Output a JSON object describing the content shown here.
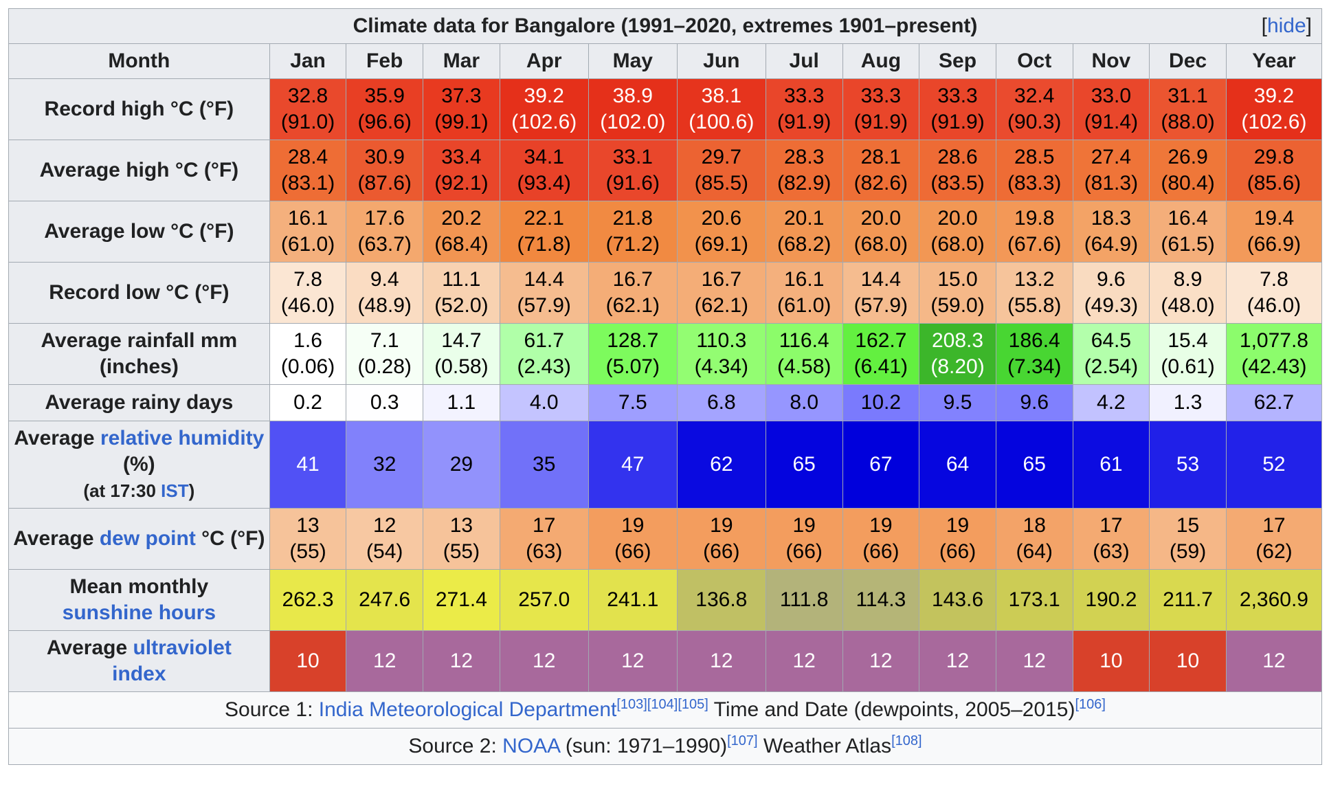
{
  "title": "Climate data for Bangalore (1991–2020, extremes 1901–present)",
  "hide_link": {
    "open": "[",
    "label": "hide",
    "close": "]"
  },
  "header": [
    "Month",
    "Jan",
    "Feb",
    "Mar",
    "Apr",
    "May",
    "Jun",
    "Jul",
    "Aug",
    "Sep",
    "Oct",
    "Nov",
    "Dec",
    "Year"
  ],
  "rows": [
    {
      "kind": "r2",
      "label": [
        {
          "t": "Record high °C (°F)"
        }
      ],
      "cells": [
        {
          "l1": "32.8",
          "l2": "(91.0)",
          "bg": "#e9492c",
          "fg": "#000000"
        },
        {
          "l1": "35.9",
          "l2": "(96.6)",
          "bg": "#e83f24",
          "fg": "#000000"
        },
        {
          "l1": "37.3",
          "l2": "(99.1)",
          "bg": "#e83a20",
          "fg": "#000000"
        },
        {
          "l1": "39.2",
          "l2": "(102.6)",
          "bg": "#e5301a",
          "fg": "#ffffff"
        },
        {
          "l1": "38.9",
          "l2": "(102.0)",
          "bg": "#e5301a",
          "fg": "#ffffff"
        },
        {
          "l1": "38.1",
          "l2": "(100.6)",
          "bg": "#e6341d",
          "fg": "#ffffff"
        },
        {
          "l1": "33.3",
          "l2": "(91.9)",
          "bg": "#e9462a",
          "fg": "#000000"
        },
        {
          "l1": "33.3",
          "l2": "(91.9)",
          "bg": "#e9462a",
          "fg": "#000000"
        },
        {
          "l1": "33.3",
          "l2": "(91.9)",
          "bg": "#e9462a",
          "fg": "#000000"
        },
        {
          "l1": "32.4",
          "l2": "(90.3)",
          "bg": "#ea4b2e",
          "fg": "#000000"
        },
        {
          "l1": "33.0",
          "l2": "(91.4)",
          "bg": "#e9472b",
          "fg": "#000000"
        },
        {
          "l1": "31.1",
          "l2": "(88.0)",
          "bg": "#eb5530",
          "fg": "#000000"
        },
        {
          "l1": "39.2",
          "l2": "(102.6)",
          "bg": "#e5301a",
          "fg": "#ffffff"
        }
      ]
    },
    {
      "kind": "r2",
      "label": [
        {
          "t": "Average high °C (°F)"
        }
      ],
      "cells": [
        {
          "l1": "28.4",
          "l2": "(83.1)",
          "bg": "#ee6d35",
          "fg": "#000000"
        },
        {
          "l1": "30.9",
          "l2": "(87.6)",
          "bg": "#eb5a30",
          "fg": "#000000"
        },
        {
          "l1": "33.4",
          "l2": "(92.1)",
          "bg": "#e9462a",
          "fg": "#000000"
        },
        {
          "l1": "34.1",
          "l2": "(93.4)",
          "bg": "#e84228",
          "fg": "#000000"
        },
        {
          "l1": "33.1",
          "l2": "(91.6)",
          "bg": "#e9472b",
          "fg": "#000000"
        },
        {
          "l1": "29.7",
          "l2": "(85.5)",
          "bg": "#ec6332",
          "fg": "#000000"
        },
        {
          "l1": "28.3",
          "l2": "(82.9)",
          "bg": "#ee6d35",
          "fg": "#000000"
        },
        {
          "l1": "28.1",
          "l2": "(82.6)",
          "bg": "#ee6f36",
          "fg": "#000000"
        },
        {
          "l1": "28.6",
          "l2": "(83.5)",
          "bg": "#ee6b35",
          "fg": "#000000"
        },
        {
          "l1": "28.5",
          "l2": "(83.3)",
          "bg": "#ee6c35",
          "fg": "#000000"
        },
        {
          "l1": "27.4",
          "l2": "(81.3)",
          "bg": "#ef7438",
          "fg": "#000000"
        },
        {
          "l1": "26.9",
          "l2": "(80.4)",
          "bg": "#ef7739",
          "fg": "#000000"
        },
        {
          "l1": "29.8",
          "l2": "(85.6)",
          "bg": "#ec6232",
          "fg": "#000000"
        }
      ]
    },
    {
      "kind": "r2",
      "label": [
        {
          "t": "Average low °C (°F)"
        }
      ],
      "cells": [
        {
          "l1": "16.1",
          "l2": "(61.0)",
          "bg": "#f4b07d",
          "fg": "#000000"
        },
        {
          "l1": "17.6",
          "l2": "(63.7)",
          "bg": "#f4a86e",
          "fg": "#000000"
        },
        {
          "l1": "20.2",
          "l2": "(68.4)",
          "bg": "#f29552",
          "fg": "#000000"
        },
        {
          "l1": "22.1",
          "l2": "(71.8)",
          "bg": "#f1883f",
          "fg": "#000000"
        },
        {
          "l1": "21.8",
          "l2": "(71.2)",
          "bg": "#f18a42",
          "fg": "#000000"
        },
        {
          "l1": "20.6",
          "l2": "(69.1)",
          "bg": "#f2924c",
          "fg": "#000000"
        },
        {
          "l1": "20.1",
          "l2": "(68.2)",
          "bg": "#f29653",
          "fg": "#000000"
        },
        {
          "l1": "20.0",
          "l2": "(68.0)",
          "bg": "#f29754",
          "fg": "#000000"
        },
        {
          "l1": "20.0",
          "l2": "(68.0)",
          "bg": "#f29754",
          "fg": "#000000"
        },
        {
          "l1": "19.8",
          "l2": "(67.6)",
          "bg": "#f39857",
          "fg": "#000000"
        },
        {
          "l1": "18.3",
          "l2": "(64.9)",
          "bg": "#f3a366",
          "fg": "#000000"
        },
        {
          "l1": "16.4",
          "l2": "(61.5)",
          "bg": "#f4ae7a",
          "fg": "#000000"
        },
        {
          "l1": "19.4",
          "l2": "(66.9)",
          "bg": "#f39a5a",
          "fg": "#000000"
        }
      ]
    },
    {
      "kind": "r2",
      "label": [
        {
          "t": "Record low °C (°F)"
        }
      ],
      "cells": [
        {
          "l1": "7.8",
          "l2": "(46.0)",
          "bg": "#fbe6d3",
          "fg": "#000000"
        },
        {
          "l1": "9.4",
          "l2": "(48.9)",
          "bg": "#fadcc2",
          "fg": "#000000"
        },
        {
          "l1": "11.1",
          "l2": "(52.0)",
          "bg": "#f8d2b1",
          "fg": "#000000"
        },
        {
          "l1": "14.4",
          "l2": "(57.9)",
          "bg": "#f5bc8f",
          "fg": "#000000"
        },
        {
          "l1": "16.7",
          "l2": "(62.1)",
          "bg": "#f4ad77",
          "fg": "#000000"
        },
        {
          "l1": "16.7",
          "l2": "(62.1)",
          "bg": "#f4ad77",
          "fg": "#000000"
        },
        {
          "l1": "16.1",
          "l2": "(61.0)",
          "bg": "#f4b07d",
          "fg": "#000000"
        },
        {
          "l1": "14.4",
          "l2": "(57.9)",
          "bg": "#f5bc8f",
          "fg": "#000000"
        },
        {
          "l1": "15.0",
          "l2": "(59.0)",
          "bg": "#f5b888",
          "fg": "#000000"
        },
        {
          "l1": "13.2",
          "l2": "(55.8)",
          "bg": "#f6c49b",
          "fg": "#000000"
        },
        {
          "l1": "9.6",
          "l2": "(49.3)",
          "bg": "#f9dbc0",
          "fg": "#000000"
        },
        {
          "l1": "8.9",
          "l2": "(48.0)",
          "bg": "#fadfc6",
          "fg": "#000000"
        },
        {
          "l1": "7.8",
          "l2": "(46.0)",
          "bg": "#fbe6d3",
          "fg": "#000000"
        }
      ]
    },
    {
      "kind": "r2",
      "label": [
        {
          "t": "Average rainfall mm (inches)"
        }
      ],
      "cells": [
        {
          "l1": "1.6",
          "l2": "(0.06)",
          "bg": "#ffffff",
          "fg": "#000000"
        },
        {
          "l1": "7.1",
          "l2": "(0.28)",
          "bg": "#f6fff6",
          "fg": "#000000"
        },
        {
          "l1": "14.7",
          "l2": "(0.58)",
          "bg": "#eaffea",
          "fg": "#000000"
        },
        {
          "l1": "61.7",
          "l2": "(2.43)",
          "bg": "#b0ffa8",
          "fg": "#000000"
        },
        {
          "l1": "128.7",
          "l2": "(5.07)",
          "bg": "#7dfb5d",
          "fg": "#000000"
        },
        {
          "l1": "110.3",
          "l2": "(4.34)",
          "bg": "#93fd72",
          "fg": "#000000"
        },
        {
          "l1": "116.4",
          "l2": "(4.58)",
          "bg": "#8cfc6a",
          "fg": "#000000"
        },
        {
          "l1": "162.7",
          "l2": "(6.41)",
          "bg": "#63f040",
          "fg": "#000000"
        },
        {
          "l1": "208.3",
          "l2": "(8.20)",
          "bg": "#3cb62a",
          "fg": "#ffffff"
        },
        {
          "l1": "186.4",
          "l2": "(7.34)",
          "bg": "#48d632",
          "fg": "#000000"
        },
        {
          "l1": "64.5",
          "l2": "(2.54)",
          "bg": "#b3ffab",
          "fg": "#000000"
        },
        {
          "l1": "15.4",
          "l2": "(0.61)",
          "bg": "#e8ffe6",
          "fg": "#000000"
        },
        {
          "l1": "1,077.8",
          "l2": "(42.43)",
          "bg": "#8cfc6c",
          "fg": "#000000"
        }
      ]
    },
    {
      "kind": "r1",
      "label": [
        {
          "t": "Average rainy days"
        }
      ],
      "cells": [
        {
          "l1": "0.2",
          "bg": "#ffffff",
          "fg": "#000000"
        },
        {
          "l1": "0.3",
          "bg": "#fefeff",
          "fg": "#000000"
        },
        {
          "l1": "1.1",
          "bg": "#f3f3ff",
          "fg": "#000000"
        },
        {
          "l1": "4.0",
          "bg": "#c4c4ff",
          "fg": "#000000"
        },
        {
          "l1": "7.5",
          "bg": "#9e9eff",
          "fg": "#000000"
        },
        {
          "l1": "6.8",
          "bg": "#a4a4ff",
          "fg": "#000000"
        },
        {
          "l1": "8.0",
          "bg": "#9696ff",
          "fg": "#000000"
        },
        {
          "l1": "10.2",
          "bg": "#7a7afd",
          "fg": "#000000"
        },
        {
          "l1": "9.5",
          "bg": "#8282fe",
          "fg": "#000000"
        },
        {
          "l1": "9.6",
          "bg": "#8080fe",
          "fg": "#000000"
        },
        {
          "l1": "4.2",
          "bg": "#c2c2ff",
          "fg": "#000000"
        },
        {
          "l1": "1.3",
          "bg": "#f1f1ff",
          "fg": "#000000"
        },
        {
          "l1": "62.7",
          "bg": "#b4b4ff",
          "fg": "#000000"
        }
      ]
    },
    {
      "kind": "r3",
      "label": [
        {
          "t": "Average ",
          "link": false
        },
        {
          "t": "relative humidity",
          "link": true
        },
        {
          "t": " (%)",
          "link": false
        },
        {
          "br": true
        },
        {
          "t": "(at 17:30 ",
          "link": false,
          "small": true
        },
        {
          "t": "IST",
          "link": true,
          "small": true
        },
        {
          "t": ")",
          "link": false,
          "small": true
        }
      ],
      "cells": [
        {
          "l1": "41",
          "bg": "#5151f5",
          "fg": "#ffffff"
        },
        {
          "l1": "32",
          "bg": "#8181fb",
          "fg": "#000000"
        },
        {
          "l1": "29",
          "bg": "#9292fc",
          "fg": "#000000"
        },
        {
          "l1": "35",
          "bg": "#7171f9",
          "fg": "#000000"
        },
        {
          "l1": "47",
          "bg": "#3333ee",
          "fg": "#ffffff"
        },
        {
          "l1": "62",
          "bg": "#0a0ae0",
          "fg": "#ffffff"
        },
        {
          "l1": "65",
          "bg": "#0404de",
          "fg": "#ffffff"
        },
        {
          "l1": "67",
          "bg": "#0000dc",
          "fg": "#ffffff"
        },
        {
          "l1": "64",
          "bg": "#0606df",
          "fg": "#ffffff"
        },
        {
          "l1": "65",
          "bg": "#0404de",
          "fg": "#ffffff"
        },
        {
          "l1": "61",
          "bg": "#0c0ce1",
          "fg": "#ffffff"
        },
        {
          "l1": "53",
          "bg": "#2020e8",
          "fg": "#ffffff"
        },
        {
          "l1": "52",
          "bg": "#2222e9",
          "fg": "#ffffff"
        }
      ]
    },
    {
      "kind": "r2",
      "label": [
        {
          "t": "Average ",
          "link": false
        },
        {
          "t": "dew point",
          "link": true
        },
        {
          "t": " °C (°F)",
          "link": false
        }
      ],
      "cells": [
        {
          "l1": "13",
          "l2": "(55)",
          "bg": "#f6c39a",
          "fg": "#000000"
        },
        {
          "l1": "12",
          "l2": "(54)",
          "bg": "#f7c8a2",
          "fg": "#000000"
        },
        {
          "l1": "13",
          "l2": "(55)",
          "bg": "#f6c39a",
          "fg": "#000000"
        },
        {
          "l1": "17",
          "l2": "(63)",
          "bg": "#f4aa72",
          "fg": "#000000"
        },
        {
          "l1": "19",
          "l2": "(66)",
          "bg": "#f39d5e",
          "fg": "#000000"
        },
        {
          "l1": "19",
          "l2": "(66)",
          "bg": "#f39d5e",
          "fg": "#000000"
        },
        {
          "l1": "19",
          "l2": "(66)",
          "bg": "#f39d5e",
          "fg": "#000000"
        },
        {
          "l1": "19",
          "l2": "(66)",
          "bg": "#f39d5e",
          "fg": "#000000"
        },
        {
          "l1": "19",
          "l2": "(66)",
          "bg": "#f39d5e",
          "fg": "#000000"
        },
        {
          "l1": "18",
          "l2": "(64)",
          "bg": "#f3a368",
          "fg": "#000000"
        },
        {
          "l1": "17",
          "l2": "(63)",
          "bg": "#f4aa72",
          "fg": "#000000"
        },
        {
          "l1": "15",
          "l2": "(59)",
          "bg": "#f5b787",
          "fg": "#000000"
        },
        {
          "l1": "17",
          "l2": "(62)",
          "bg": "#f4aa72",
          "fg": "#000000"
        }
      ]
    },
    {
      "kind": "r2",
      "label": [
        {
          "t": "Mean monthly",
          "link": false
        },
        {
          "br": true
        },
        {
          "t": "sunshine hours",
          "link": true
        }
      ],
      "cells": [
        {
          "l1": "262.3",
          "bg": "#e8e84a",
          "fg": "#000000"
        },
        {
          "l1": "247.6",
          "bg": "#e4e44c",
          "fg": "#000000"
        },
        {
          "l1": "271.4",
          "bg": "#ebeb48",
          "fg": "#000000"
        },
        {
          "l1": "257.0",
          "bg": "#e6e64b",
          "fg": "#000000"
        },
        {
          "l1": "241.1",
          "bg": "#e2e24d",
          "fg": "#000000"
        },
        {
          "l1": "136.8",
          "bg": "#c0c064",
          "fg": "#000000"
        },
        {
          "l1": "111.8",
          "bg": "#b3b37a",
          "fg": "#000000"
        },
        {
          "l1": "114.3",
          "bg": "#b5b577",
          "fg": "#000000"
        },
        {
          "l1": "143.6",
          "bg": "#c3c35d",
          "fg": "#000000"
        },
        {
          "l1": "173.1",
          "bg": "#cccc55",
          "fg": "#000000"
        },
        {
          "l1": "190.2",
          "bg": "#d2d252",
          "fg": "#000000"
        },
        {
          "l1": "211.7",
          "bg": "#d9d94f",
          "fg": "#000000"
        },
        {
          "l1": "2,360.9",
          "bg": "#d7d750",
          "fg": "#000000"
        }
      ]
    },
    {
      "kind": "r2",
      "label": [
        {
          "t": "Average ",
          "link": false
        },
        {
          "t": "ultraviolet",
          "link": true
        },
        {
          "br": true
        },
        {
          "t": "index",
          "link": true
        }
      ],
      "cells": [
        {
          "l1": "10",
          "bg": "#d8412a",
          "fg": "#ffffff"
        },
        {
          "l1": "12",
          "bg": "#a8699c",
          "fg": "#ffffff"
        },
        {
          "l1": "12",
          "bg": "#a8699c",
          "fg": "#ffffff"
        },
        {
          "l1": "12",
          "bg": "#a8699c",
          "fg": "#ffffff"
        },
        {
          "l1": "12",
          "bg": "#a8699c",
          "fg": "#ffffff"
        },
        {
          "l1": "12",
          "bg": "#a8699c",
          "fg": "#ffffff"
        },
        {
          "l1": "12",
          "bg": "#a8699c",
          "fg": "#ffffff"
        },
        {
          "l1": "12",
          "bg": "#a8699c",
          "fg": "#ffffff"
        },
        {
          "l1": "12",
          "bg": "#a8699c",
          "fg": "#ffffff"
        },
        {
          "l1": "12",
          "bg": "#a8699c",
          "fg": "#ffffff"
        },
        {
          "l1": "10",
          "bg": "#d8412a",
          "fg": "#ffffff"
        },
        {
          "l1": "10",
          "bg": "#d8412a",
          "fg": "#ffffff"
        },
        {
          "l1": "12",
          "bg": "#a8699c",
          "fg": "#ffffff"
        }
      ]
    }
  ],
  "sources": [
    [
      {
        "t": "Source 1: "
      },
      {
        "t": "India Meteorological Department",
        "link": true
      },
      {
        "t": "[103][104][105]",
        "sup": true
      },
      {
        "t": " Time and Date (dewpoints, 2005–2015)"
      },
      {
        "t": "[106]",
        "sup": true
      }
    ],
    [
      {
        "t": "Source 2: "
      },
      {
        "t": "NOAA",
        "link": true
      },
      {
        "t": " (sun: 1971–1990)"
      },
      {
        "t": "[107]",
        "sup": true
      },
      {
        "t": " Weather Atlas"
      },
      {
        "t": "[108]",
        "sup": true
      }
    ]
  ]
}
